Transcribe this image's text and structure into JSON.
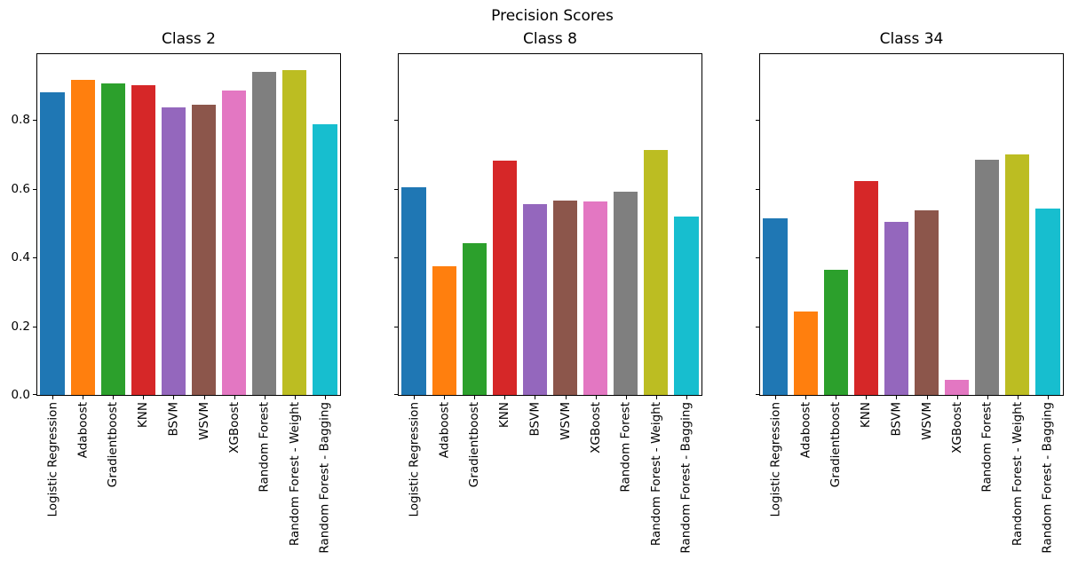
{
  "figure": {
    "suptitle": "Precision Scores",
    "background": "#ffffff",
    "spine_color": "#000000"
  },
  "chart_data": [
    {
      "type": "bar",
      "title": "Class 2",
      "categories": [
        "Logistic Regression",
        "Adaboost",
        "Gradientboost",
        "KNN",
        "BSVM",
        "WSVM",
        "XGBoost",
        "Random Forest",
        "Random Forest - Weight",
        "Random Forest - Bagging"
      ],
      "values": [
        0.88,
        0.917,
        0.907,
        0.901,
        0.837,
        0.845,
        0.886,
        0.941,
        0.945,
        0.788
      ],
      "colors": [
        "#1f77b4",
        "#ff7f0e",
        "#2ca02c",
        "#d62728",
        "#9467bd",
        "#8c564b",
        "#e377c2",
        "#7f7f7f",
        "#bcbd22",
        "#17becf"
      ],
      "ylim": [
        0,
        0.992
      ],
      "yticks": [
        0,
        0.2,
        0.4,
        0.6,
        0.8
      ],
      "ytick_labels": [
        "0.0",
        "0.2",
        "0.4",
        "0.6",
        "0.8"
      ],
      "ytick_labels_shown": true,
      "grid": false,
      "legend": null
    },
    {
      "type": "bar",
      "title": "Class 8",
      "categories": [
        "Logistic Regression",
        "Adaboost",
        "Gradientboost",
        "KNN",
        "BSVM",
        "WSVM",
        "XGBoost",
        "Random Forest",
        "Random Forest - Weight",
        "Random Forest - Bagging"
      ],
      "values": [
        0.605,
        0.374,
        0.443,
        0.683,
        0.556,
        0.565,
        0.563,
        0.592,
        0.712,
        0.518
      ],
      "colors": [
        "#1f77b4",
        "#ff7f0e",
        "#2ca02c",
        "#d62728",
        "#9467bd",
        "#8c564b",
        "#e377c2",
        "#7f7f7f",
        "#bcbd22",
        "#17becf"
      ],
      "ylim": [
        0,
        0.992
      ],
      "yticks": [
        0,
        0.2,
        0.4,
        0.6,
        0.8
      ],
      "ytick_labels": [
        "0.0",
        "0.2",
        "0.4",
        "0.6",
        "0.8"
      ],
      "ytick_labels_shown": false,
      "grid": false,
      "legend": null
    },
    {
      "type": "bar",
      "title": "Class 34",
      "categories": [
        "Logistic Regression",
        "Adaboost",
        "Gradientboost",
        "KNN",
        "BSVM",
        "WSVM",
        "XGBoost",
        "Random Forest",
        "Random Forest - Weight",
        "Random Forest - Bagging"
      ],
      "values": [
        0.515,
        0.243,
        0.365,
        0.622,
        0.505,
        0.537,
        0.043,
        0.684,
        0.701,
        0.543
      ],
      "colors": [
        "#1f77b4",
        "#ff7f0e",
        "#2ca02c",
        "#d62728",
        "#9467bd",
        "#8c564b",
        "#e377c2",
        "#7f7f7f",
        "#bcbd22",
        "#17becf"
      ],
      "ylim": [
        0,
        0.992
      ],
      "yticks": [
        0,
        0.2,
        0.4,
        0.6,
        0.8
      ],
      "ytick_labels": [
        "0.0",
        "0.2",
        "0.4",
        "0.6",
        "0.8"
      ],
      "ytick_labels_shown": false,
      "grid": false,
      "legend": null
    }
  ]
}
